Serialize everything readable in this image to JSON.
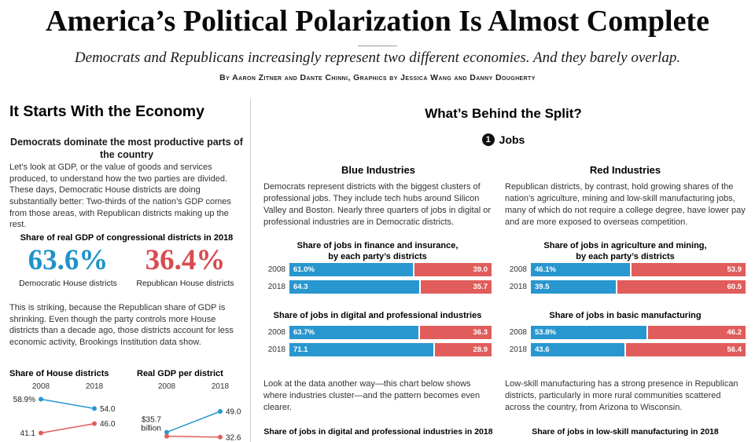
{
  "header": {
    "title": "America’s Political Polarization Is Almost Complete",
    "subtitle": "Democrats and Republicans increasingly represent two different economies. And they barely overlap.",
    "byline": "By Aaron Zitner and Dante Chinni, Graphics by Jessica Wang and Danny Dougherty"
  },
  "colors": {
    "dem_blue": "#2997cf",
    "rep_red": "#e05d5b",
    "num_blue": "#1f93c9",
    "num_red": "#d84b50"
  },
  "left": {
    "heading": "It Starts With the Economy",
    "subheading": "Democrats dominate the most productive parts of the country",
    "para1": "Let’s look at GDP, or the value of goods and services produced, to understand how the two parties are divided. These days, Democratic House districts are doing substantially better: Two-thirds of the nation’s GDP comes from those areas, with Republican districts making up the rest.",
    "gdp_label": "Share of real GDP of congressional districts in 2018",
    "dem_value": "63.6%",
    "dem_caption": "Democratic House districts",
    "rep_value": "36.4%",
    "rep_caption": "Republican House districts",
    "para2": "This is striking, because the Republican share of GDP is shrinking. Even though the party controls more House districts than a decade ago, those districts account for less economic activity, Brookings Institution data show."
  },
  "split": {
    "heading": "What’s Behind the Split?",
    "badge_number": "1",
    "badge_label": "Jobs",
    "blue_title": "Blue Industries",
    "blue_para": "Democrats represent districts with the biggest clusters of professional jobs. They include tech hubs around Silicon Valley and Boston. Nearly three quarters of jobs in digital or professional industries are in Democratic districts.",
    "red_title": "Red Industries",
    "red_para": "Republican districts, by contrast, hold growing shares of the nation’s agriculture, mining and low-skill manufacturing jobs, many of which do not require a college degree, have lower pay and are more exposed to overseas competition.",
    "middle_note": "Look at the data another way—this chart below shows where industries cluster—and the pattern becomes even clearer.",
    "right_note": "Low-skill manufacturing has a strong presence in Republican districts, particularly in more rural communities scattered across the country, from Arizona to Wisconsin.",
    "middle_bottom_title": "Share of jobs in digital and professional industries in 2018",
    "right_bottom_title": "Share of jobs in low-skill manufacturing in 2018"
  },
  "chart_data": [
    {
      "id": "house-districts-share",
      "type": "line",
      "title": "Share of House districts",
      "x": [
        "2008",
        "2018"
      ],
      "ylim": [
        38,
        62
      ],
      "series": [
        {
          "name": "Democratic",
          "party": "dem",
          "values": [
            58.9,
            54.0
          ],
          "labels": [
            "58.9%",
            "54.0"
          ]
        },
        {
          "name": "Republican",
          "party": "rep",
          "values": [
            41.1,
            46.0
          ],
          "labels": [
            "41.1",
            "46.0"
          ]
        }
      ]
    },
    {
      "id": "real-gdp-per-district",
      "type": "line",
      "title": "Real GDP per district",
      "x": [
        "2008",
        "2018"
      ],
      "unit": "$ billion",
      "ylim": [
        30,
        52
      ],
      "series": [
        {
          "name": "Democratic",
          "party": "dem",
          "values": [
            35.7,
            49.0
          ],
          "labels": [
            "$35.7\nbillion",
            "49.0"
          ]
        },
        {
          "name": "Republican",
          "party": "rep",
          "values": [
            33.2,
            32.6
          ],
          "labels": [
            "",
            "32.6"
          ]
        }
      ]
    },
    {
      "id": "finance-insurance",
      "type": "bar",
      "title": "Share of jobs in finance and insurance, by each party’s districts",
      "title_lines": [
        "Share of jobs in finance and insurance,",
        "by each party’s districts"
      ],
      "categories": [
        "2008",
        "2018"
      ],
      "xlim": [
        0,
        100
      ],
      "series": [
        {
          "name": "Democratic districts",
          "party": "dem",
          "values": [
            61.0,
            64.3
          ],
          "labels": [
            "61.0%",
            "64.3"
          ]
        },
        {
          "name": "Republican districts",
          "party": "rep",
          "values": [
            39.0,
            35.7
          ],
          "labels": [
            "39.0",
            "35.7"
          ]
        }
      ]
    },
    {
      "id": "digital-professional",
      "type": "bar",
      "title": "Share of jobs in digital and professional industries",
      "title_lines": [
        "Share of jobs in digital and professional industries"
      ],
      "categories": [
        "2008",
        "2018"
      ],
      "xlim": [
        0,
        100
      ],
      "series": [
        {
          "name": "Democratic districts",
          "party": "dem",
          "values": [
            63.7,
            71.1
          ],
          "labels": [
            "63.7%",
            "71.1"
          ]
        },
        {
          "name": "Republican districts",
          "party": "rep",
          "values": [
            36.3,
            28.9
          ],
          "labels": [
            "36.3",
            "28.9"
          ]
        }
      ]
    },
    {
      "id": "agriculture-mining",
      "type": "bar",
      "title": "Share of jobs in agriculture and mining, by each party’s districts",
      "title_lines": [
        "Share of jobs in agriculture and mining,",
        "by each party’s districts"
      ],
      "categories": [
        "2008",
        "2018"
      ],
      "xlim": [
        0,
        100
      ],
      "series": [
        {
          "name": "Democratic districts",
          "party": "dem",
          "values": [
            46.1,
            39.5
          ],
          "labels": [
            "46.1%",
            "39.5"
          ]
        },
        {
          "name": "Republican districts",
          "party": "rep",
          "values": [
            53.9,
            60.5
          ],
          "labels": [
            "53.9",
            "60.5"
          ]
        }
      ]
    },
    {
      "id": "basic-manufacturing",
      "type": "bar",
      "title": "Share of jobs in basic manufacturing",
      "title_lines": [
        "Share of jobs in basic manufacturing"
      ],
      "categories": [
        "2008",
        "2018"
      ],
      "xlim": [
        0,
        100
      ],
      "series": [
        {
          "name": "Democratic districts",
          "party": "dem",
          "values": [
            53.8,
            43.6
          ],
          "labels": [
            "53.8%",
            "43.6"
          ]
        },
        {
          "name": "Republican districts",
          "party": "rep",
          "values": [
            46.2,
            56.4
          ],
          "labels": [
            "46.2",
            "56.4"
          ]
        }
      ]
    }
  ]
}
